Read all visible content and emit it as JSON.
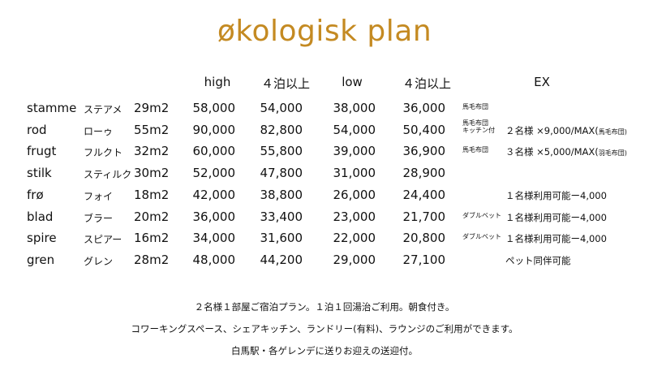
{
  "title": "økologisk plan",
  "headers": [
    "high",
    "４泊以上",
    "low",
    "４泊以上",
    "EX"
  ],
  "rows": [
    {
      "name": "stamme",
      "kana": "ステアメ",
      "size": "29m2",
      "prices": [
        "58,000",
        "54,000",
        "38,000",
        "36,000"
      ],
      "note": "馬毛布団",
      "ex": "",
      "ex_small": ""
    },
    {
      "name": "rod",
      "kana": "ローゥ",
      "size": "55m2",
      "prices": [
        "90,000",
        "82,800",
        "54,000",
        "50,400"
      ],
      "note": "馬毛布団\nキッチン付",
      "ex": "２名様 ×9,000/MAX(",
      "ex_small": "馬毛布団)"
    },
    {
      "name": "frugt",
      "kana": "フルクト",
      "size": "32m2",
      "prices": [
        "60,000",
        "55,800",
        "39,000",
        "36,900"
      ],
      "note": "馬毛布団",
      "ex": "３名様 ×5,000/MAX(",
      "ex_small": "羽毛布団)"
    },
    {
      "name": "stilk",
      "kana": "スティルク",
      "size": "30m2",
      "prices": [
        "52,000",
        "47,800",
        "31,000",
        "28,900"
      ],
      "note": "",
      "ex": "",
      "ex_small": ""
    },
    {
      "name": "frø",
      "kana": "フォイ",
      "size": "18m2",
      "prices": [
        "42,000",
        "38,800",
        "26,000",
        "24,400"
      ],
      "note": "",
      "ex": "１名様利用可能ー4,000",
      "ex_small": ""
    },
    {
      "name": "blad",
      "kana": "ブラー",
      "size": "20m2",
      "prices": [
        "36,000",
        "33,400",
        "23,000",
        "21,700"
      ],
      "note": "ダブルベット",
      "ex": "１名様利用可能ー4,000",
      "ex_small": ""
    },
    {
      "name": "spire",
      "kana": "スピアー",
      "size": "16m2",
      "prices": [
        "34,000",
        "31,600",
        "22,000",
        "20,800"
      ],
      "note": "ダブルベット",
      "ex": "１名様利用可能ー4,000",
      "ex_small": ""
    },
    {
      "name": "gren",
      "kana": "グレン",
      "size": "28m2",
      "prices": [
        "48,000",
        "44,200",
        "29,000",
        "27,100"
      ],
      "note": "",
      "ex": "ペット同伴可能",
      "ex_small": ""
    }
  ],
  "footer": [
    "２名様１部屋ご宿泊プラン。１泊１回湯治ご利用。朝食付き。",
    "コワーキングスペース、シェアキッチン、ランドリー(有料)、ラウンジのご利用ができます。",
    "白馬駅・各ゲレンデに送りお迎えの送迎付。"
  ],
  "colors": {
    "title": "#c48a22"
  }
}
